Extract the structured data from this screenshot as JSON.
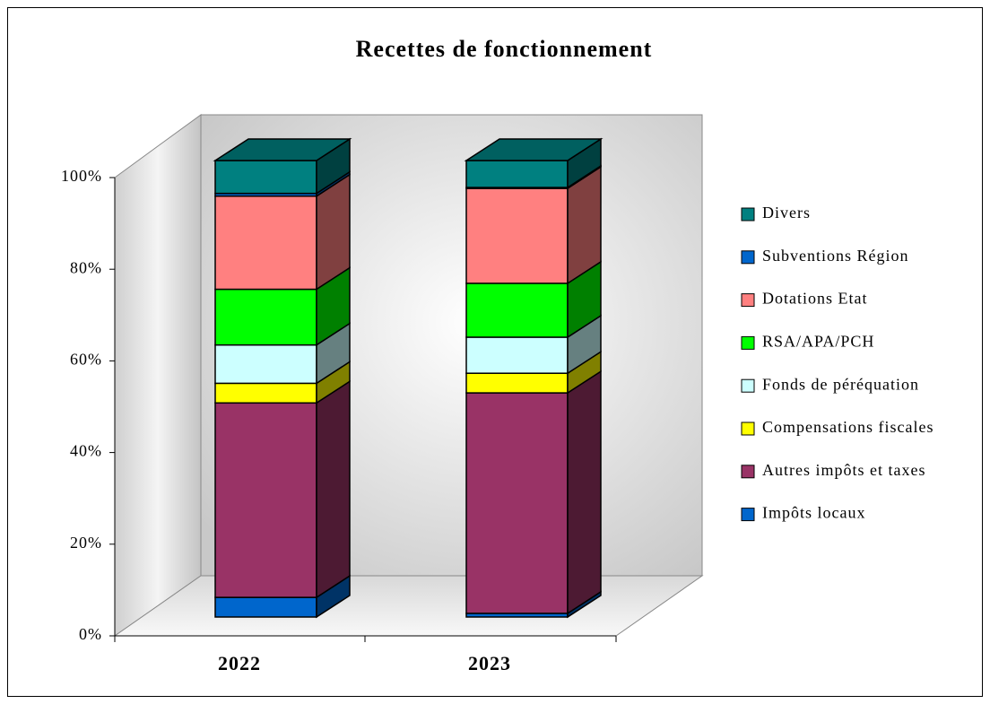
{
  "chart_data": {
    "type": "bar3d-stacked",
    "title": "Recettes de fonctionnement",
    "categories": [
      "2022",
      "2023"
    ],
    "series": [
      {
        "name": "Impôts locaux",
        "color": "#0066cc",
        "values": [
          4.3,
          0.8
        ]
      },
      {
        "name": "Autres impôts et taxes",
        "color": "#993366",
        "values": [
          42.6,
          48.3
        ]
      },
      {
        "name": "Compensations fiscales",
        "color": "#ffff00",
        "values": [
          4.3,
          4.3
        ]
      },
      {
        "name": "Fonds de péréquation",
        "color": "#ccffff",
        "values": [
          8.4,
          7.9
        ]
      },
      {
        "name": "RSA/APA/PCH",
        "color": "#00ff00",
        "values": [
          12.2,
          11.8
        ]
      },
      {
        "name": "Dotations Etat",
        "color": "#ff8080",
        "values": [
          20.4,
          20.8
        ]
      },
      {
        "name": "Subventions Région",
        "color": "#0066cc",
        "values": [
          0.6,
          0.2
        ]
      },
      {
        "name": "Divers",
        "color": "#008080",
        "values": [
          7.2,
          5.9
        ]
      }
    ],
    "ylim": [
      0,
      100
    ],
    "yticks": [
      {
        "value": 0,
        "label": "0%"
      },
      {
        "value": 20,
        "label": "20%"
      },
      {
        "value": 40,
        "label": "40%"
      },
      {
        "value": 60,
        "label": "60%"
      },
      {
        "value": 80,
        "label": "80%"
      },
      {
        "value": 100,
        "label": "100%"
      }
    ],
    "legend": "right"
  }
}
